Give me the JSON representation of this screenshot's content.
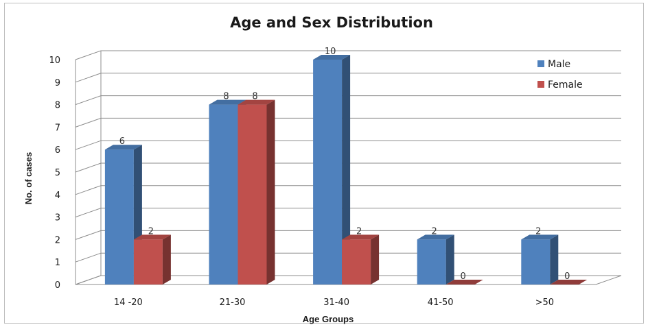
{
  "chart_data": {
    "type": "bar",
    "title": "Age and Sex Distribution",
    "xlabel": "Age Groups",
    "ylabel": "No. of cases",
    "categories": [
      "14 -20",
      "21-30",
      "31-40",
      "41-50",
      ">50"
    ],
    "series": [
      {
        "name": "Male",
        "values": [
          6,
          8,
          10,
          2,
          2
        ],
        "color": "#4f81bd"
      },
      {
        "name": "Female",
        "values": [
          2,
          8,
          2,
          0,
          0
        ],
        "color": "#c0504d"
      }
    ],
    "ylim": [
      0,
      10
    ],
    "yticks": [
      "0",
      "1",
      "2",
      "3",
      "4",
      "5",
      "6",
      "7",
      "8",
      "9",
      "10"
    ],
    "grid": true,
    "three_d": true,
    "legend_position": "top-right"
  }
}
